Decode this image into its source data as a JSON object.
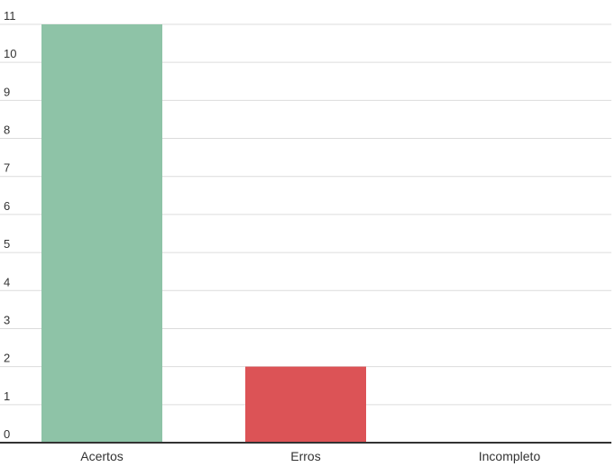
{
  "chart_data": {
    "type": "bar",
    "title": "",
    "xlabel": "",
    "ylabel": "",
    "categories": [
      "Acertos",
      "Erros",
      "Incompleto"
    ],
    "values": [
      11,
      2,
      0
    ],
    "colors": [
      "#8ec3a7",
      "#dc5356",
      "#8ec3a7"
    ],
    "ylim": [
      0,
      11
    ],
    "yticks": [
      0,
      1,
      2,
      3,
      4,
      5,
      6,
      7,
      8,
      9,
      10,
      11
    ],
    "grid": true,
    "legend": "none",
    "gridline_color": "#dcdcdc",
    "axis_color": "#333333"
  }
}
